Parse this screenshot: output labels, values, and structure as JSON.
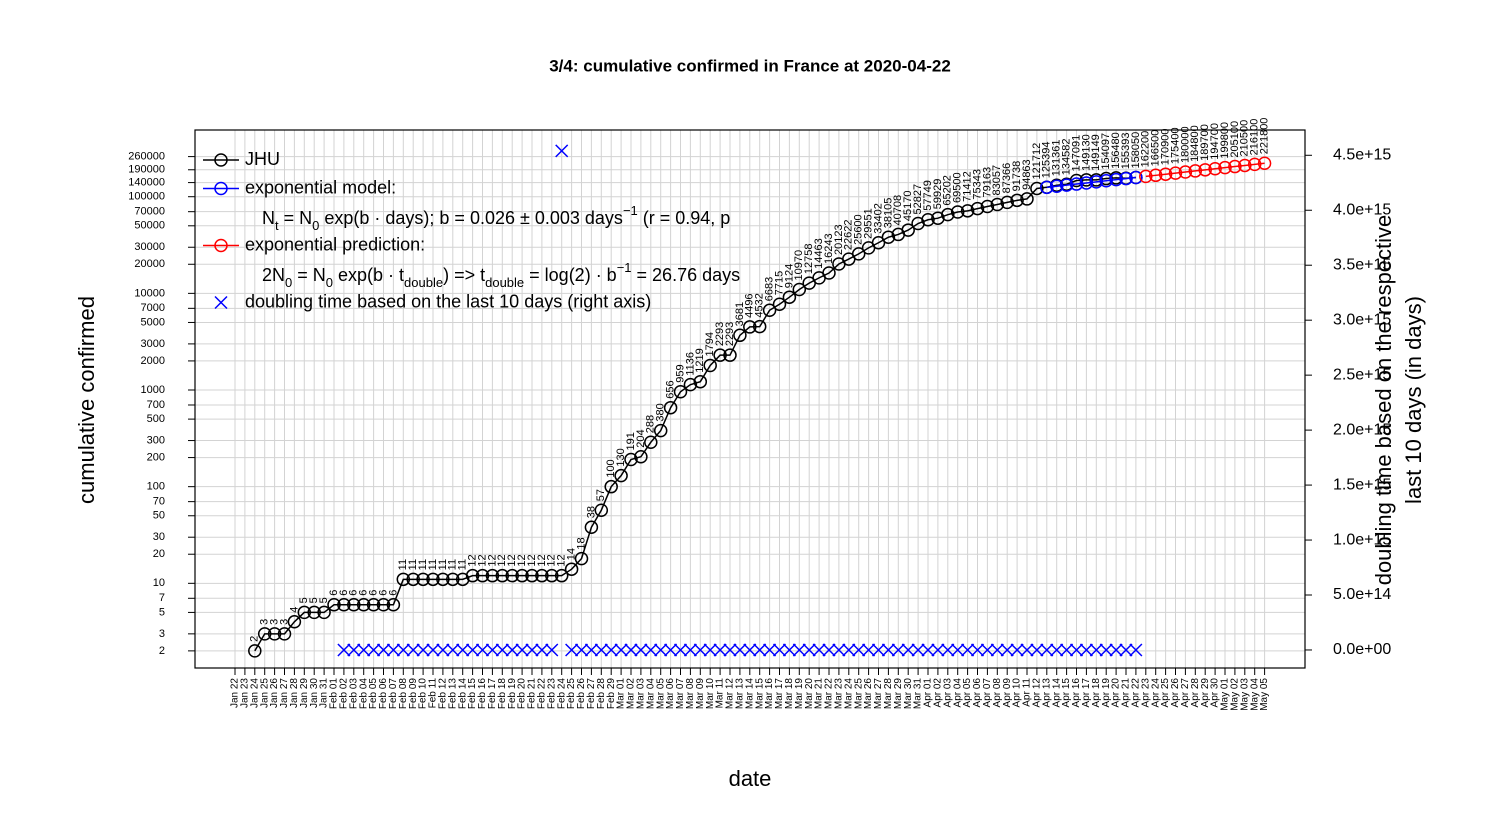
{
  "chart_data": {
    "type": "line",
    "title": "3/4: cumulative confirmed in France at 2020-04-22",
    "xlabel": "date",
    "ylabel": "cumulative confirmed",
    "y2label": [
      "doubling time based on the respective",
      "last 10 days (in days)"
    ],
    "log_y": true,
    "grid": true,
    "legend": "topleft",
    "categories": [
      "Jan 22",
      "Jan 23",
      "Jan 24",
      "Jan 25",
      "Jan 26",
      "Jan 27",
      "Jan 28",
      "Jan 29",
      "Jan 30",
      "Jan 31",
      "Feb 01",
      "Feb 02",
      "Feb 03",
      "Feb 04",
      "Feb 05",
      "Feb 06",
      "Feb 07",
      "Feb 08",
      "Feb 09",
      "Feb 10",
      "Feb 11",
      "Feb 12",
      "Feb 13",
      "Feb 14",
      "Feb 15",
      "Feb 16",
      "Feb 17",
      "Feb 18",
      "Feb 19",
      "Feb 20",
      "Feb 21",
      "Feb 22",
      "Feb 23",
      "Feb 24",
      "Feb 25",
      "Feb 26",
      "Feb 27",
      "Feb 28",
      "Feb 29",
      "Mar 01",
      "Mar 02",
      "Mar 03",
      "Mar 04",
      "Mar 05",
      "Mar 06",
      "Mar 07",
      "Mar 08",
      "Mar 09",
      "Mar 10",
      "Mar 11",
      "Mar 12",
      "Mar 13",
      "Mar 14",
      "Mar 15",
      "Mar 16",
      "Mar 17",
      "Mar 18",
      "Mar 19",
      "Mar 20",
      "Mar 21",
      "Mar 22",
      "Mar 23",
      "Mar 24",
      "Mar 25",
      "Mar 26",
      "Mar 27",
      "Mar 28",
      "Mar 29",
      "Mar 30",
      "Mar 31",
      "Apr 01",
      "Apr 02",
      "Apr 03",
      "Apr 04",
      "Apr 05",
      "Apr 06",
      "Apr 07",
      "Apr 08",
      "Apr 09",
      "Apr 10",
      "Apr 11",
      "Apr 12",
      "Apr 13",
      "Apr 14",
      "Apr 15",
      "Apr 16",
      "Apr 17",
      "Apr 18",
      "Apr 19",
      "Apr 20",
      "Apr 21",
      "Apr 22",
      "Apr 23",
      "Apr 24",
      "Apr 25",
      "Apr 26",
      "Apr 27",
      "Apr 28",
      "Apr 29",
      "Apr 30",
      "May 01",
      "May 02",
      "May 03",
      "May 04",
      "May 05"
    ],
    "ylim": [
      1.33,
      490000
    ],
    "yticks": [
      2,
      3,
      5,
      7,
      10,
      20,
      30,
      50,
      70,
      100,
      200,
      300,
      500,
      700,
      1000,
      2000,
      3000,
      5000,
      7000,
      10000,
      20000,
      30000,
      50000,
      70000,
      100000,
      140000,
      190000,
      260000
    ],
    "y2lim": [
      -164000000000000.0,
      4730000000000000.0
    ],
    "y2ticks": [
      {
        "value": 0,
        "label": "0.0e+00"
      },
      {
        "value": 500000000000000.0,
        "label": "5.0e+14"
      },
      {
        "value": 1000000000000000.0,
        "label": "1.0e+15"
      },
      {
        "value": 1500000000000000.0,
        "label": "1.5e+15"
      },
      {
        "value": 2000000000000000.0,
        "label": "2.0e+15"
      },
      {
        "value": 2500000000000000.0,
        "label": "2.5e+15"
      },
      {
        "value": 3000000000000000.0,
        "label": "3.0e+15"
      },
      {
        "value": 3500000000000000.0,
        "label": "3.5e+15"
      },
      {
        "value": 4000000000000000.0,
        "label": "4.0e+15"
      },
      {
        "value": 4500000000000000.0,
        "label": "4.5e+15"
      }
    ],
    "series": [
      {
        "name": "JHU",
        "color": "#000000",
        "marker": "o",
        "line": true,
        "data_labels": true,
        "values": [
          null,
          null,
          2,
          3,
          3,
          3,
          4,
          5,
          5,
          5,
          6,
          6,
          6,
          6,
          6,
          6,
          6,
          11,
          11,
          11,
          11,
          11,
          11,
          11,
          12,
          12,
          12,
          12,
          12,
          12,
          12,
          12,
          12,
          12,
          14,
          18,
          38,
          57,
          100,
          130,
          191,
          204,
          288,
          380,
          656,
          959,
          1136,
          1219,
          1794,
          2293,
          2293,
          3681,
          4496,
          4532,
          6683,
          7715,
          9124,
          10970,
          12758,
          14463,
          16243,
          20123,
          22622,
          25600,
          29551,
          33402,
          38105,
          40708,
          45170,
          52827,
          57749,
          59929,
          65202,
          69500,
          71412,
          75343,
          79163,
          83057,
          87366,
          91738,
          94863,
          121712,
          125394,
          131361,
          134582,
          147091,
          149130,
          149149,
          154097,
          156480,
          155393,
          158050,
          null,
          null,
          null,
          null,
          null,
          null,
          null,
          null,
          null,
          null,
          null,
          null,
          null
        ]
      },
      {
        "name": "exponential model:",
        "color": "#0000ff",
        "marker": "o",
        "line": true,
        "data_labels": false,
        "values": [
          null,
          null,
          null,
          null,
          null,
          null,
          null,
          null,
          null,
          null,
          null,
          null,
          null,
          null,
          null,
          null,
          null,
          null,
          null,
          null,
          null,
          null,
          null,
          null,
          null,
          null,
          null,
          null,
          null,
          null,
          null,
          null,
          null,
          null,
          null,
          null,
          null,
          null,
          null,
          null,
          null,
          null,
          null,
          null,
          null,
          null,
          null,
          null,
          null,
          null,
          null,
          null,
          null,
          null,
          null,
          null,
          null,
          null,
          null,
          null,
          null,
          null,
          null,
          null,
          null,
          null,
          null,
          null,
          null,
          null,
          null,
          null,
          null,
          null,
          null,
          null,
          null,
          null,
          null,
          null,
          null,
          null,
          125000,
          128300,
          131700,
          135200,
          138800,
          142400,
          146200,
          150100,
          154000,
          158000,
          null,
          null,
          null,
          null,
          null,
          null,
          null,
          null,
          null,
          null,
          null,
          null,
          null
        ]
      },
      {
        "name": "exponential prediction:",
        "color": "#ff0000",
        "marker": "o",
        "line": true,
        "data_labels": true,
        "values": [
          null,
          null,
          null,
          null,
          null,
          null,
          null,
          null,
          null,
          null,
          null,
          null,
          null,
          null,
          null,
          null,
          null,
          null,
          null,
          null,
          null,
          null,
          null,
          null,
          null,
          null,
          null,
          null,
          null,
          null,
          null,
          null,
          null,
          null,
          null,
          null,
          null,
          null,
          null,
          null,
          null,
          null,
          null,
          null,
          null,
          null,
          null,
          null,
          null,
          null,
          null,
          null,
          null,
          null,
          null,
          null,
          null,
          null,
          null,
          null,
          null,
          null,
          null,
          null,
          null,
          null,
          null,
          null,
          null,
          null,
          null,
          null,
          null,
          null,
          null,
          null,
          null,
          null,
          null,
          null,
          null,
          null,
          null,
          null,
          null,
          null,
          null,
          null,
          null,
          null,
          null,
          null,
          162200,
          166500,
          170900,
          175400,
          180000,
          184800,
          189700,
          194700,
          199800,
          205100,
          210500,
          216100,
          221800
        ]
      },
      {
        "name": "doubling time based on the last  10  days (right axis)",
        "color": "#0000ff",
        "marker": "x",
        "line": false,
        "data_labels": false,
        "axis": "y2",
        "values": [
          null,
          null,
          null,
          null,
          null,
          null,
          null,
          null,
          null,
          null,
          null,
          0,
          0,
          0,
          0,
          0,
          0,
          0,
          0,
          0,
          0,
          0,
          0,
          0,
          0,
          0,
          0,
          0,
          0,
          0,
          0,
          0,
          0,
          4540000000000000.0,
          0,
          0,
          0,
          0,
          0,
          0,
          0,
          0,
          0,
          0,
          0,
          0,
          0,
          0,
          0,
          0,
          0,
          0,
          0,
          0,
          0,
          0,
          0,
          0,
          0,
          0,
          0,
          0,
          0,
          0,
          0,
          0,
          0,
          0,
          0,
          0,
          0,
          0,
          0,
          0,
          0,
          0,
          0,
          0,
          0,
          0,
          0,
          0,
          0,
          0,
          0,
          0,
          0,
          0,
          0,
          0,
          0,
          0,
          null,
          null,
          null,
          null,
          null,
          null,
          null,
          null,
          null,
          null,
          null,
          null,
          null
        ]
      }
    ],
    "legend_notes": [
      {
        "after": 1,
        "parts": [
          {
            "text": "N"
          },
          {
            "text": "t",
            "shift": "sub"
          },
          {
            "text": " = N"
          },
          {
            "text": "0",
            "shift": "sub"
          },
          {
            "text": " exp(b · days); b = 0.026 ± 0.003 days"
          },
          {
            "text": "−1",
            "shift": "super"
          },
          {
            "text": " (r = 0.94, p"
          }
        ]
      },
      {
        "after": 2,
        "parts": [
          {
            "text": "2N"
          },
          {
            "text": "0",
            "shift": "sub"
          },
          {
            "text": " = N"
          },
          {
            "text": "0",
            "shift": "sub"
          },
          {
            "text": " exp(b · t"
          },
          {
            "text": "double",
            "shift": "sub"
          },
          {
            "text": ") => t"
          },
          {
            "text": "double",
            "shift": "sub"
          },
          {
            "text": " = log(2) · b"
          },
          {
            "text": "−1",
            "shift": "super"
          },
          {
            "text": " = 26.76 days"
          }
        ]
      }
    ]
  }
}
